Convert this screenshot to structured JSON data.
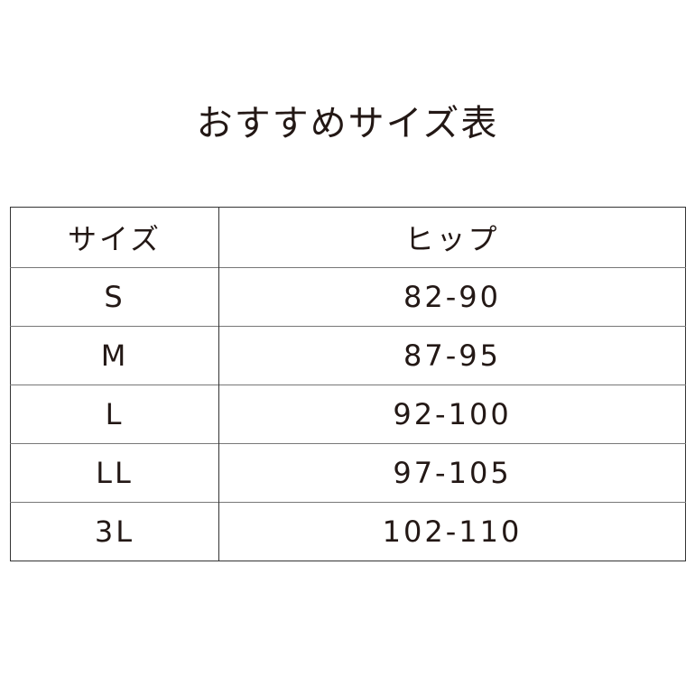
{
  "title": "おすすめサイズ表",
  "table": {
    "headers": [
      "サイズ",
      "ヒップ"
    ],
    "rows": [
      [
        "S",
        "82-90"
      ],
      [
        "M",
        "87-95"
      ],
      [
        "L",
        "92-100"
      ],
      [
        "LL",
        "97-105"
      ],
      [
        "3L",
        "102-110"
      ]
    ]
  }
}
